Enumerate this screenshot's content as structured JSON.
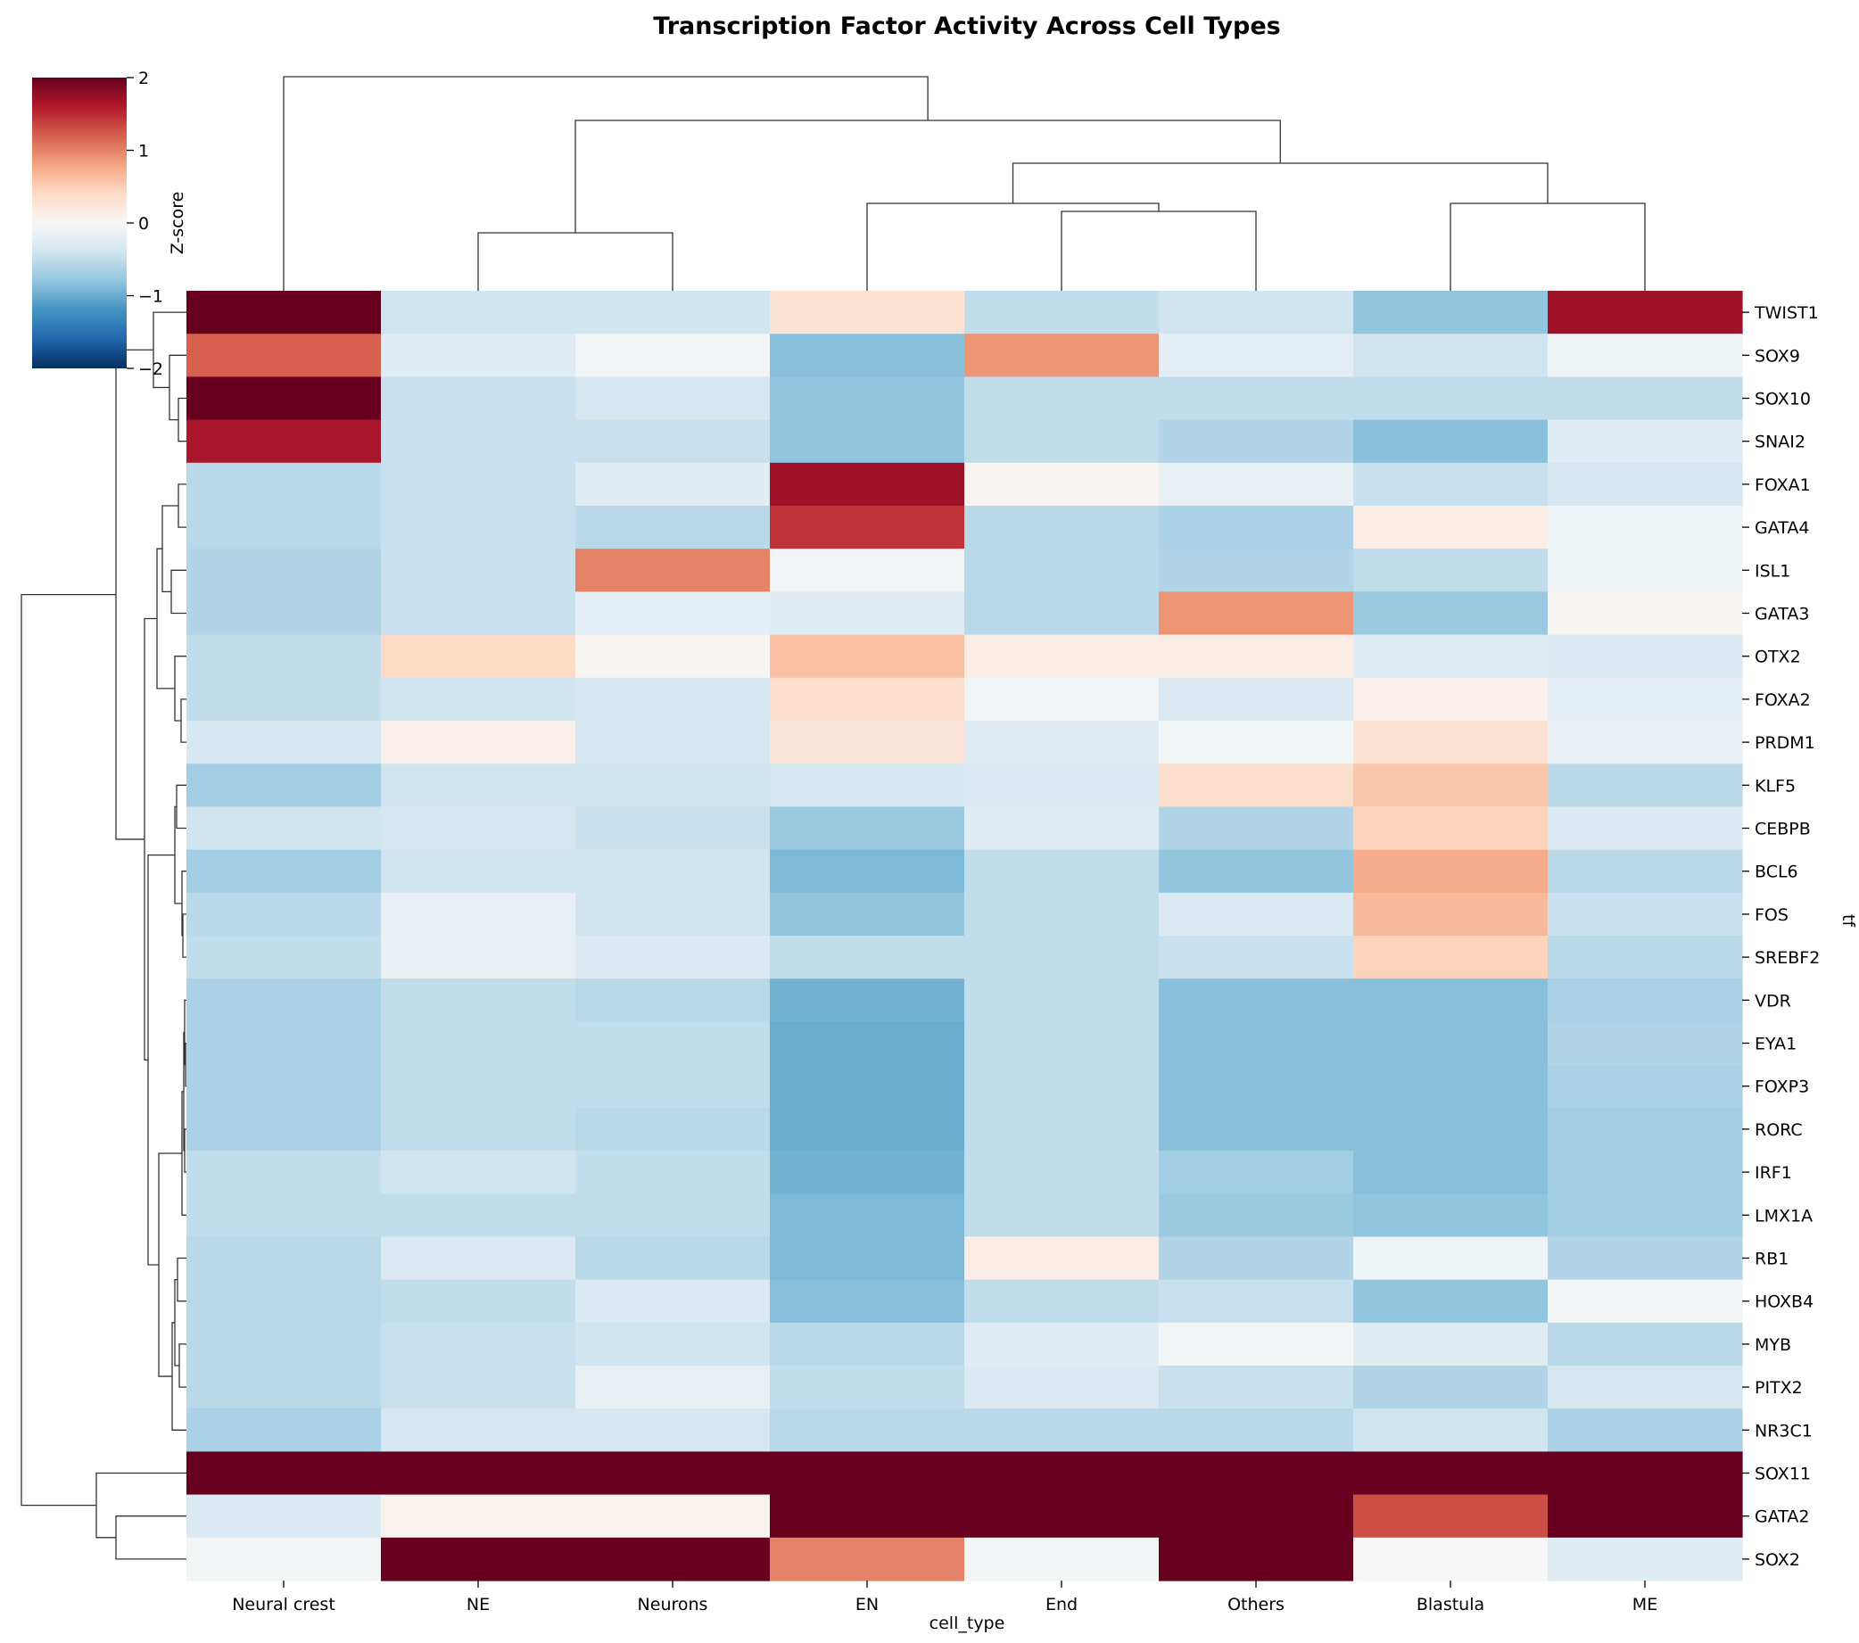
{
  "chart_data": {
    "type": "heatmap",
    "title": "Transcription Factor Activity Across Cell Types",
    "xlabel": "cell_type",
    "ylabel": "tf",
    "colorbar": {
      "label": "Z-score",
      "range": [
        -2,
        2
      ],
      "ticks": [
        2,
        1,
        0,
        -1,
        -2
      ],
      "tick_labels": [
        "2",
        "1",
        "0",
        "−1",
        "−2"
      ],
      "colormap": "RdBu_r"
    },
    "columns": [
      "Neural crest",
      "NE",
      "Neurons",
      "EN",
      "End",
      "Others",
      "Blastula",
      "ME"
    ],
    "rows": [
      "TWIST1",
      "SOX9",
      "SOX10",
      "SNAI2",
      "FOXA1",
      "GATA4",
      "ISL1",
      "GATA3",
      "OTX2",
      "FOXA2",
      "PRDM1",
      "KLF5",
      "CEBPB",
      "BCL6",
      "FOS",
      "SREBF2",
      "VDR",
      "EYA1",
      "FOXP3",
      "RORC",
      "IRF1",
      "LMX1A",
      "RB1",
      "HOXB4",
      "MYB",
      "PITX2",
      "NR3C1",
      "SOX11",
      "GATA2",
      "SOX2"
    ],
    "values": [
      [
        2.5,
        -0.4,
        -0.4,
        0.3,
        -0.5,
        -0.4,
        -0.8,
        1.7
      ],
      [
        1.2,
        -0.25,
        -0.05,
        -0.85,
        0.9,
        -0.2,
        -0.4,
        -0.1
      ],
      [
        2.5,
        -0.45,
        -0.35,
        -0.8,
        -0.5,
        -0.5,
        -0.5,
        -0.5
      ],
      [
        1.65,
        -0.45,
        -0.45,
        -0.8,
        -0.5,
        -0.6,
        -0.85,
        -0.25
      ],
      [
        -0.55,
        -0.45,
        -0.25,
        1.7,
        0.05,
        -0.15,
        -0.45,
        -0.35
      ],
      [
        -0.55,
        -0.45,
        -0.55,
        1.45,
        -0.55,
        -0.65,
        0.15,
        -0.1
      ],
      [
        -0.6,
        -0.45,
        1.0,
        -0.05,
        -0.55,
        -0.6,
        -0.5,
        -0.1
      ],
      [
        -0.6,
        -0.45,
        -0.2,
        -0.25,
        -0.55,
        0.9,
        -0.75,
        0.05
      ],
      [
        -0.5,
        0.4,
        0.05,
        0.6,
        0.15,
        0.15,
        -0.25,
        -0.3
      ],
      [
        -0.5,
        -0.4,
        -0.35,
        0.35,
        -0.05,
        -0.3,
        0.1,
        -0.2
      ],
      [
        -0.35,
        0.1,
        -0.35,
        0.25,
        -0.25,
        -0.05,
        0.3,
        -0.15
      ],
      [
        -0.7,
        -0.4,
        -0.4,
        -0.35,
        -0.3,
        0.35,
        0.55,
        -0.55
      ],
      [
        -0.4,
        -0.35,
        -0.45,
        -0.75,
        -0.25,
        -0.6,
        0.45,
        -0.3
      ],
      [
        -0.7,
        -0.4,
        -0.4,
        -0.9,
        -0.5,
        -0.8,
        0.75,
        -0.55
      ],
      [
        -0.55,
        -0.15,
        -0.4,
        -0.8,
        -0.5,
        -0.3,
        0.65,
        -0.45
      ],
      [
        -0.5,
        -0.15,
        -0.3,
        -0.5,
        -0.5,
        -0.45,
        0.45,
        -0.55
      ],
      [
        -0.65,
        -0.5,
        -0.55,
        -0.95,
        -0.5,
        -0.85,
        -0.85,
        -0.65
      ],
      [
        -0.65,
        -0.5,
        -0.5,
        -1.0,
        -0.5,
        -0.85,
        -0.85,
        -0.6
      ],
      [
        -0.65,
        -0.5,
        -0.5,
        -1.0,
        -0.5,
        -0.85,
        -0.85,
        -0.65
      ],
      [
        -0.65,
        -0.5,
        -0.55,
        -1.0,
        -0.5,
        -0.85,
        -0.85,
        -0.7
      ],
      [
        -0.5,
        -0.4,
        -0.5,
        -0.95,
        -0.5,
        -0.7,
        -0.85,
        -0.7
      ],
      [
        -0.5,
        -0.5,
        -0.5,
        -0.9,
        -0.5,
        -0.75,
        -0.8,
        -0.7
      ],
      [
        -0.55,
        -0.3,
        -0.55,
        -0.9,
        0.15,
        -0.6,
        -0.1,
        -0.6
      ],
      [
        -0.55,
        -0.5,
        -0.3,
        -0.85,
        -0.5,
        -0.45,
        -0.8,
        -0.05
      ],
      [
        -0.55,
        -0.45,
        -0.4,
        -0.55,
        -0.25,
        -0.05,
        -0.25,
        -0.55
      ],
      [
        -0.55,
        -0.45,
        -0.15,
        -0.5,
        -0.3,
        -0.45,
        -0.6,
        -0.35
      ],
      [
        -0.65,
        -0.35,
        -0.35,
        -0.55,
        -0.55,
        -0.55,
        -0.4,
        -0.65
      ],
      [
        2.5,
        2.5,
        2.5,
        2.5,
        2.5,
        2.5,
        2.5,
        2.5
      ],
      [
        -0.3,
        0.08,
        0.08,
        2.5,
        2.5,
        2.5,
        1.3,
        2.5
      ],
      [
        -0.05,
        2.5,
        2.5,
        1.0,
        -0.05,
        2.5,
        0.0,
        -0.25
      ]
    ],
    "grid": false,
    "legend": "colorbar top-left"
  }
}
